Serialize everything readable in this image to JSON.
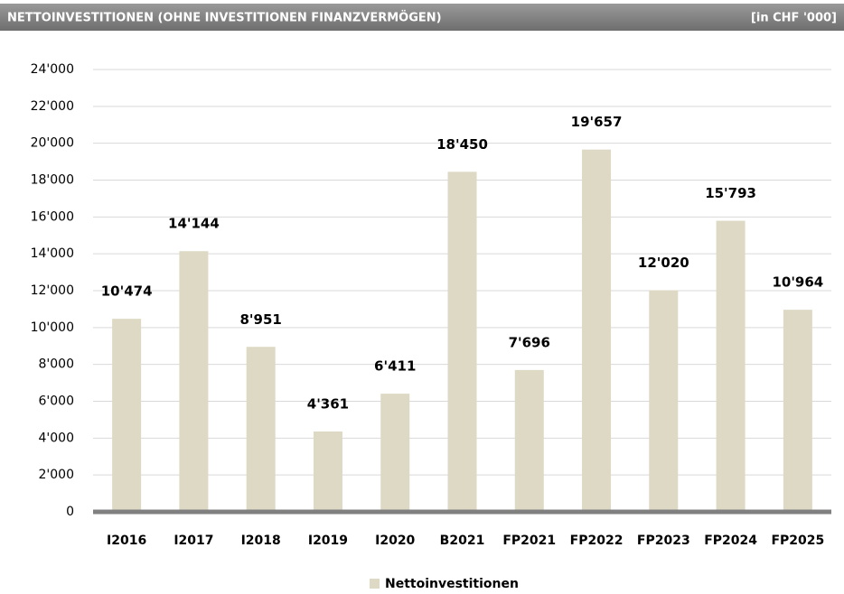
{
  "chart_data": {
    "type": "bar",
    "title": "NETTOINVESTITIONEN (OHNE INVESTITIONEN FINANZVERMÖGEN)",
    "subtitle": "[in CHF '000]",
    "categories": [
      "I2016",
      "I2017",
      "I2018",
      "I2019",
      "I2020",
      "B2021",
      "FP2021",
      "FP2022",
      "FP2023",
      "FP2024",
      "FP2025"
    ],
    "series": [
      {
        "name": "Nettoinvestitionen",
        "color": "#ddd9c4",
        "values": [
          10474,
          14144,
          8951,
          4361,
          6411,
          18450,
          7696,
          19657,
          12020,
          15793,
          10964
        ],
        "value_labels": [
          "10'474",
          "14'144",
          "8'951",
          "4'361",
          "6'411",
          "18'450",
          "7'696",
          "19'657",
          "12'020",
          "15'793",
          "10'964"
        ]
      }
    ],
    "ylim": [
      0,
      24000
    ],
    "yticks": [
      0,
      {
        "value": 2000,
        "label": "2'000"
      },
      {
        "value": 4000,
        "label": "4'000"
      },
      {
        "value": 6000,
        "label": "6'000"
      },
      {
        "value": 8000,
        "label": "8'000"
      },
      {
        "value": 10000,
        "label": "10'000"
      },
      {
        "value": 12000,
        "label": "12'000"
      },
      {
        "value": 14000,
        "label": "14'000"
      },
      {
        "value": 16000,
        "label": "16'000"
      },
      {
        "value": 18000,
        "label": "18'000"
      },
      {
        "value": 20000,
        "label": "20'000"
      },
      {
        "value": 22000,
        "label": "22'000"
      },
      {
        "value": 24000,
        "label": "24'000"
      }
    ],
    "grid": true,
    "legend": "bottom"
  }
}
